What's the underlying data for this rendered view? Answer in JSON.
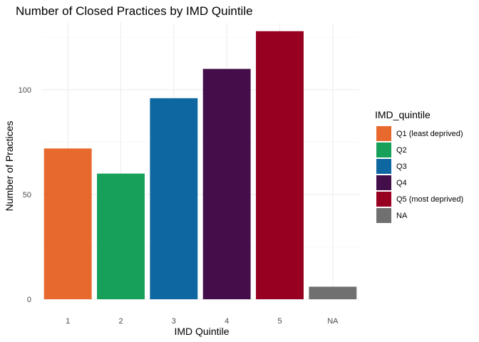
{
  "chart_data": {
    "type": "bar",
    "title": "Number of Closed Practices by IMD Quintile",
    "xlabel": "IMD Quintile",
    "ylabel": "Number of Practices",
    "categories": [
      "1",
      "2",
      "3",
      "4",
      "5",
      "NA"
    ],
    "values": [
      72,
      60,
      96,
      110,
      128,
      6
    ],
    "fill_groups": [
      "Q1 (least deprived)",
      "Q2",
      "Q3",
      "Q4",
      "Q5 (most deprived)",
      "NA"
    ],
    "ylim": [
      0,
      132
    ],
    "yticks": [
      0,
      50,
      100
    ],
    "grid": true,
    "legend": {
      "title": "IMD_quintile",
      "placement": "right",
      "entries": [
        {
          "label": "Q1 (least deprived)",
          "color": "#E8692D"
        },
        {
          "label": "Q2",
          "color": "#16A05A"
        },
        {
          "label": "Q3",
          "color": "#0E67A0"
        },
        {
          "label": "Q4",
          "color": "#440E4A"
        },
        {
          "label": "Q5 (most deprived)",
          "color": "#970020"
        },
        {
          "label": "NA",
          "color": "#707070"
        }
      ]
    }
  }
}
